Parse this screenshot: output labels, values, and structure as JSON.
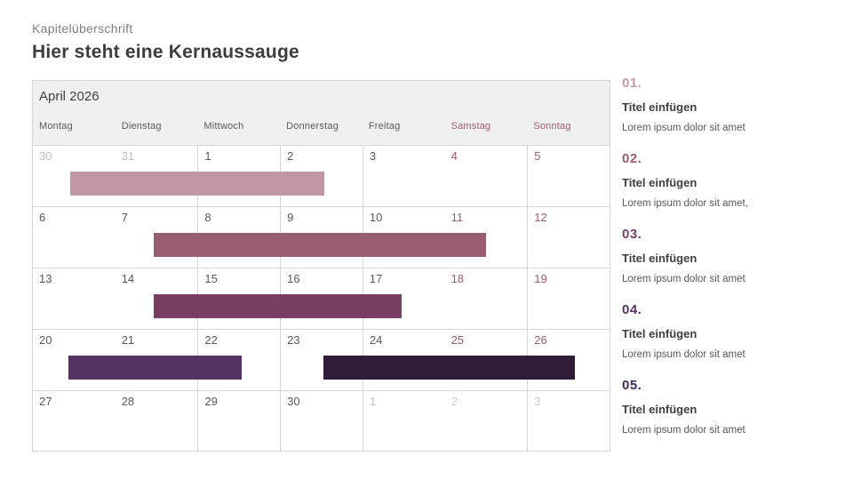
{
  "header": {
    "kicker": "Kapitelüberschrift",
    "title": "Hier steht eine Kernaussauge"
  },
  "calendar": {
    "month_label": "April 2026",
    "day_headers": [
      {
        "label": "Montag"
      },
      {
        "label": "Dienstag"
      },
      {
        "label": "Mittwoch"
      },
      {
        "label": "Donnerstag"
      },
      {
        "label": "Freitag"
      },
      {
        "label": "Samstag"
      },
      {
        "label": "Sonntag"
      }
    ],
    "weeks": [
      {
        "days": [
          {
            "num": "30"
          },
          {
            "num": "31"
          },
          {
            "num": "1"
          },
          {
            "num": "2"
          },
          {
            "num": "3"
          },
          {
            "num": "4"
          },
          {
            "num": "5"
          }
        ],
        "bars": [
          {
            "legend_ref": "01.",
            "left": "6.45%",
            "width": "44.1%",
            "color": "#c197a5"
          }
        ]
      },
      {
        "days": [
          {
            "num": "6"
          },
          {
            "num": "7"
          },
          {
            "num": "8"
          },
          {
            "num": "9"
          },
          {
            "num": "10"
          },
          {
            "num": "11"
          },
          {
            "num": "12"
          }
        ],
        "bars": [
          {
            "legend_ref": "02.",
            "left": "21.0%",
            "width": "57.6%",
            "color": "#9a5c70"
          }
        ]
      },
      {
        "days": [
          {
            "num": "13"
          },
          {
            "num": "14"
          },
          {
            "num": "15"
          },
          {
            "num": "16"
          },
          {
            "num": "17"
          },
          {
            "num": "18"
          },
          {
            "num": "19"
          }
        ],
        "bars": [
          {
            "legend_ref": "03.",
            "left": "21.0%",
            "width": "43.0%",
            "color": "#783e64"
          }
        ]
      },
      {
        "days": [
          {
            "num": "20"
          },
          {
            "num": "21"
          },
          {
            "num": "22"
          },
          {
            "num": "23"
          },
          {
            "num": "24"
          },
          {
            "num": "25"
          },
          {
            "num": "26"
          }
        ],
        "bars": [
          {
            "legend_ref": "04.",
            "left": "6.1%",
            "width": "30.1%",
            "color": "#553261"
          },
          {
            "legend_ref": "05.",
            "left": "50.4%",
            "width": "43.6%",
            "color": "#2f1d37"
          }
        ]
      },
      {
        "days": [
          {
            "num": "27"
          },
          {
            "num": "28"
          },
          {
            "num": "29"
          },
          {
            "num": "30"
          },
          {
            "num": "1"
          },
          {
            "num": "2"
          },
          {
            "num": "3"
          }
        ],
        "bars": []
      }
    ],
    "colors": {
      "weekday_text": "#595959",
      "weekend_text": "#9e5a70",
      "outside_month_text": "#bfbfbf",
      "outside_month_weekend_text": "#ddc6ce",
      "header_bg": "#f1f0f0",
      "grid_line": "#d6d4d4"
    }
  },
  "legend": {
    "items": [
      {
        "number": "01.",
        "color": "#ca9aab",
        "title": "Titel einfügen",
        "text": "Lorem ipsum dolor sit amet"
      },
      {
        "number": "02.",
        "color": "#9a5c70",
        "title": "Titel einfügen",
        "text": "Lorem ipsum dolor sit amet,"
      },
      {
        "number": "03.",
        "color": "#783e64",
        "title": "Titel einfügen",
        "text": "Lorem ipsum dolor sit amet"
      },
      {
        "number": "04.",
        "color": "#553261",
        "title": "Titel einfügen",
        "text": "Lorem ipsum dolor sit amet"
      },
      {
        "number": "05.",
        "color": "#3e2754",
        "title": "Titel einfügen",
        "text": "Lorem ipsum dolor sit amet"
      }
    ]
  }
}
